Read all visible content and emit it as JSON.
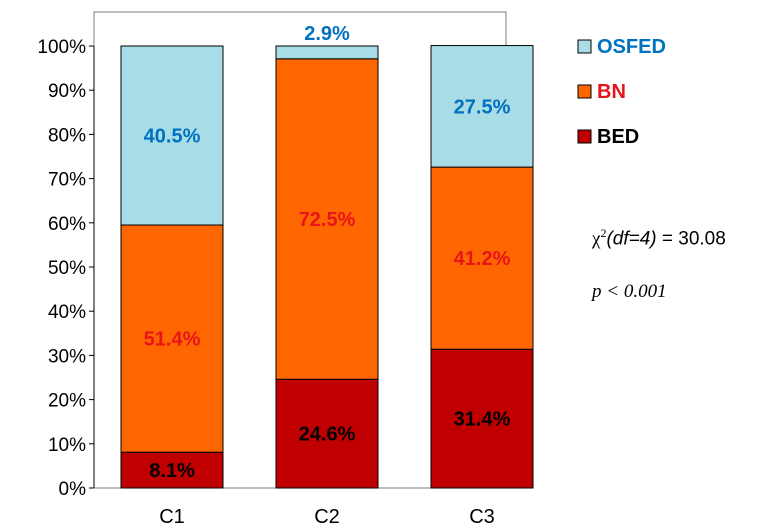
{
  "chart_data": {
    "type": "bar",
    "stacked": true,
    "categories": [
      "C1",
      "C2",
      "C3"
    ],
    "ylim": [
      0,
      100
    ],
    "yticks": [
      "0%",
      "10%",
      "20%",
      "30%",
      "40%",
      "50%",
      "60%",
      "70%",
      "80%",
      "90%",
      "100%"
    ],
    "grid": false,
    "legend_position": "right",
    "series": [
      {
        "name": "BED",
        "color": "#c00000",
        "label_color": "#000000",
        "values": [
          8.1,
          24.6,
          31.4
        ],
        "labels": [
          "8.1%",
          "24.6%",
          "31.4%"
        ]
      },
      {
        "name": "BN",
        "color": "#ff6600",
        "label_color": "#e8141b",
        "values": [
          51.4,
          72.5,
          41.2
        ],
        "labels": [
          "51.4%",
          "72.5%",
          "41.2%"
        ]
      },
      {
        "name": "OSFED",
        "color": "#a8dce6",
        "label_color": "#0070c0",
        "values": [
          40.5,
          2.9,
          27.5
        ],
        "labels": [
          "40.5%",
          "2.9%",
          "27.5%"
        ]
      }
    ],
    "legend_order": [
      "OSFED",
      "BN",
      "BED"
    ],
    "legend_text_colors": {
      "OSFED": "#0070c0",
      "BN": "#e8141b",
      "BED": "#000000"
    }
  },
  "stats": {
    "chi_symbol": "χ",
    "chi_sup": "2",
    "df_text": "(df=4)",
    "chi_value": " = 30.08",
    "p_text": "p < 0.001"
  }
}
